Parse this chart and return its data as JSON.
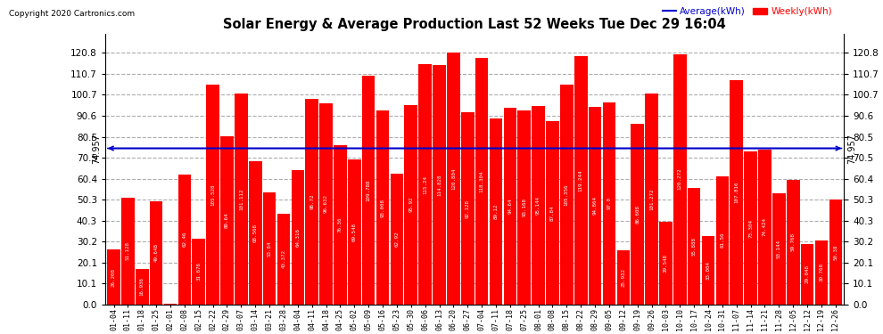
{
  "title": "Solar Energy & Average Production Last 52 Weeks Tue Dec 29 16:04",
  "copyright": "Copyright 2020 Cartronics.com",
  "average_label": "Average(kWh)",
  "weekly_label": "Weekly(kWh)",
  "average_value": 74.957,
  "bar_color": "#ff0000",
  "average_line_color": "#0000cc",
  "background_color": "#ffffff",
  "grid_color": "#999999",
  "ylim_max": 130,
  "yticks": [
    0.0,
    10.1,
    20.1,
    30.2,
    40.3,
    50.3,
    60.4,
    70.5,
    80.5,
    90.6,
    100.7,
    110.7,
    120.8
  ],
  "categories": [
    "01-04",
    "01-11",
    "01-18",
    "01-25",
    "02-01",
    "02-08",
    "02-15",
    "02-22",
    "02-29",
    "03-07",
    "03-14",
    "03-21",
    "03-28",
    "04-04",
    "04-11",
    "04-18",
    "04-25",
    "05-02",
    "05-09",
    "05-16",
    "05-23",
    "05-30",
    "06-06",
    "06-13",
    "06-20",
    "06-27",
    "07-04",
    "07-11",
    "07-18",
    "07-25",
    "08-01",
    "08-08",
    "08-15",
    "08-22",
    "08-29",
    "09-05",
    "09-12",
    "09-19",
    "09-26",
    "10-03",
    "10-10",
    "10-17",
    "10-24",
    "10-31",
    "11-07",
    "11-14",
    "11-21",
    "11-28",
    "12-05",
    "12-12",
    "12-19",
    "12-26"
  ],
  "values": [
    26.208,
    51.128,
    16.936,
    49.648,
    0.096,
    62.46,
    31.676,
    105.528,
    80.64,
    101.112,
    68.568,
    53.84,
    43.372,
    64.316,
    98.72,
    96.632,
    76.36,
    69.548,
    109.788,
    93.008,
    62.92,
    95.92,
    115.24,
    114.828,
    120.804,
    92.128,
    118.304,
    89.12,
    94.64,
    93.168,
    95.144,
    87.84,
    105.356,
    119.244,
    94.864,
    97.0,
    25.932,
    86.608,
    101.272,
    39.548,
    120.272,
    55.888,
    33.004,
    61.56,
    107.816,
    73.304,
    74.424,
    53.144,
    59.768,
    29.048,
    30.768,
    50.38
  ]
}
